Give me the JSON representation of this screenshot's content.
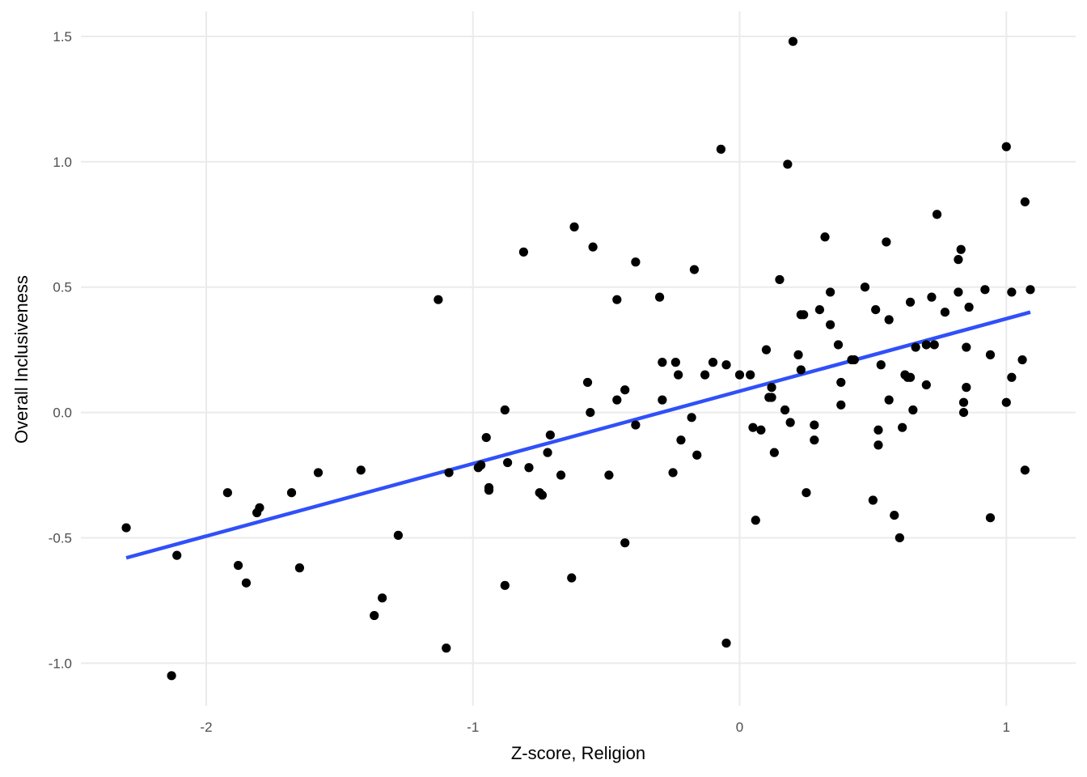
{
  "chart_data": {
    "type": "scatter",
    "title": "",
    "xlabel": "Z-score, Religion",
    "ylabel": "Overall Inclusiveness",
    "xlim": [
      -2.47,
      1.26
    ],
    "ylim": [
      -1.17,
      1.6
    ],
    "x_ticks": [
      {
        "value": -2,
        "label": "-2"
      },
      {
        "value": -1,
        "label": "-1"
      },
      {
        "value": 0,
        "label": "0"
      },
      {
        "value": 1,
        "label": "1"
      }
    ],
    "y_ticks": [
      {
        "value": -1.0,
        "label": "-1.0"
      },
      {
        "value": -0.5,
        "label": "-0.5"
      },
      {
        "value": 0.0,
        "label": "0.0"
      },
      {
        "value": 0.5,
        "label": "0.5"
      },
      {
        "value": 1.0,
        "label": "1.0"
      },
      {
        "value": 1.5,
        "label": "1.5"
      }
    ],
    "grid": true,
    "legend": "none",
    "point_color": "#000000",
    "line_color": "#3050f8",
    "trend_line": {
      "x": [
        -2.3,
        1.09
      ],
      "y": [
        -0.58,
        0.4
      ]
    },
    "points": [
      [
        -2.3,
        -0.46
      ],
      [
        -2.13,
        -1.05
      ],
      [
        -2.11,
        -0.57
      ],
      [
        -1.92,
        -0.32
      ],
      [
        -1.88,
        -0.61
      ],
      [
        -1.85,
        -0.68
      ],
      [
        -1.81,
        -0.4
      ],
      [
        -1.8,
        -0.38
      ],
      [
        -1.68,
        -0.32
      ],
      [
        -1.65,
        -0.62
      ],
      [
        -1.58,
        -0.24
      ],
      [
        -1.42,
        -0.23
      ],
      [
        -1.37,
        -0.81
      ],
      [
        -1.34,
        -0.74
      ],
      [
        -1.28,
        -0.49
      ],
      [
        -1.13,
        0.45
      ],
      [
        -1.1,
        -0.94
      ],
      [
        -1.09,
        -0.24
      ],
      [
        -0.98,
        -0.22
      ],
      [
        -0.97,
        -0.21
      ],
      [
        -0.95,
        -0.1
      ],
      [
        -0.94,
        -0.31
      ],
      [
        -0.94,
        -0.3
      ],
      [
        -0.88,
        0.01
      ],
      [
        -0.88,
        -0.69
      ],
      [
        -0.87,
        -0.2
      ],
      [
        -0.81,
        0.64
      ],
      [
        -0.79,
        -0.22
      ],
      [
        -0.75,
        -0.32
      ],
      [
        -0.74,
        -0.33
      ],
      [
        -0.72,
        -0.16
      ],
      [
        -0.71,
        -0.09
      ],
      [
        -0.67,
        -0.25
      ],
      [
        -0.63,
        -0.66
      ],
      [
        -0.62,
        0.74
      ],
      [
        -0.57,
        0.12
      ],
      [
        -0.56,
        0.0
      ],
      [
        -0.55,
        0.66
      ],
      [
        -0.49,
        -0.25
      ],
      [
        -0.46,
        0.05
      ],
      [
        -0.46,
        0.45
      ],
      [
        -0.43,
        0.09
      ],
      [
        -0.43,
        -0.52
      ],
      [
        -0.39,
        -0.05
      ],
      [
        -0.39,
        0.6
      ],
      [
        -0.3,
        0.46
      ],
      [
        -0.29,
        0.2
      ],
      [
        -0.29,
        0.05
      ],
      [
        -0.25,
        -0.24
      ],
      [
        -0.24,
        0.2
      ],
      [
        -0.23,
        0.15
      ],
      [
        -0.22,
        -0.11
      ],
      [
        -0.18,
        -0.02
      ],
      [
        -0.17,
        0.57
      ],
      [
        -0.16,
        -0.17
      ],
      [
        -0.13,
        0.15
      ],
      [
        -0.1,
        0.2
      ],
      [
        -0.07,
        1.05
      ],
      [
        -0.05,
        0.19
      ],
      [
        -0.05,
        -0.92
      ],
      [
        0.0,
        0.15
      ],
      [
        0.04,
        0.15
      ],
      [
        0.05,
        -0.06
      ],
      [
        0.06,
        -0.43
      ],
      [
        0.08,
        -0.07
      ],
      [
        0.1,
        0.25
      ],
      [
        0.11,
        0.06
      ],
      [
        0.12,
        0.06
      ],
      [
        0.12,
        0.1
      ],
      [
        0.13,
        -0.16
      ],
      [
        0.15,
        0.53
      ],
      [
        0.17,
        0.01
      ],
      [
        0.18,
        0.99
      ],
      [
        0.19,
        -0.04
      ],
      [
        0.2,
        1.48
      ],
      [
        0.22,
        0.23
      ],
      [
        0.23,
        0.17
      ],
      [
        0.23,
        0.39
      ],
      [
        0.24,
        0.39
      ],
      [
        0.25,
        -0.32
      ],
      [
        0.28,
        -0.05
      ],
      [
        0.28,
        -0.11
      ],
      [
        0.3,
        0.41
      ],
      [
        0.32,
        0.7
      ],
      [
        0.34,
        0.48
      ],
      [
        0.34,
        0.35
      ],
      [
        0.37,
        0.27
      ],
      [
        0.38,
        0.12
      ],
      [
        0.38,
        0.03
      ],
      [
        0.42,
        0.21
      ],
      [
        0.43,
        0.21
      ],
      [
        0.47,
        0.5
      ],
      [
        0.5,
        -0.35
      ],
      [
        0.51,
        0.41
      ],
      [
        0.52,
        -0.13
      ],
      [
        0.52,
        -0.07
      ],
      [
        0.53,
        0.19
      ],
      [
        0.55,
        0.68
      ],
      [
        0.56,
        0.05
      ],
      [
        0.56,
        0.37
      ],
      [
        0.58,
        -0.41
      ],
      [
        0.6,
        -0.5
      ],
      [
        0.61,
        -0.06
      ],
      [
        0.62,
        0.15
      ],
      [
        0.63,
        0.14
      ],
      [
        0.64,
        0.14
      ],
      [
        0.64,
        0.44
      ],
      [
        0.65,
        0.01
      ],
      [
        0.66,
        0.26
      ],
      [
        0.7,
        0.11
      ],
      [
        0.7,
        0.27
      ],
      [
        0.72,
        0.46
      ],
      [
        0.73,
        0.27
      ],
      [
        0.74,
        0.79
      ],
      [
        0.77,
        0.4
      ],
      [
        0.82,
        0.61
      ],
      [
        0.82,
        0.48
      ],
      [
        0.83,
        0.65
      ],
      [
        0.84,
        0.0
      ],
      [
        0.84,
        0.04
      ],
      [
        0.85,
        0.1
      ],
      [
        0.85,
        0.26
      ],
      [
        0.86,
        0.42
      ],
      [
        0.92,
        0.49
      ],
      [
        0.94,
        0.23
      ],
      [
        0.94,
        -0.42
      ],
      [
        1.0,
        0.04
      ],
      [
        1.0,
        1.06
      ],
      [
        1.02,
        0.48
      ],
      [
        1.02,
        0.14
      ],
      [
        1.06,
        0.21
      ],
      [
        1.07,
        0.84
      ],
      [
        1.07,
        -0.23
      ],
      [
        1.09,
        0.49
      ]
    ]
  }
}
